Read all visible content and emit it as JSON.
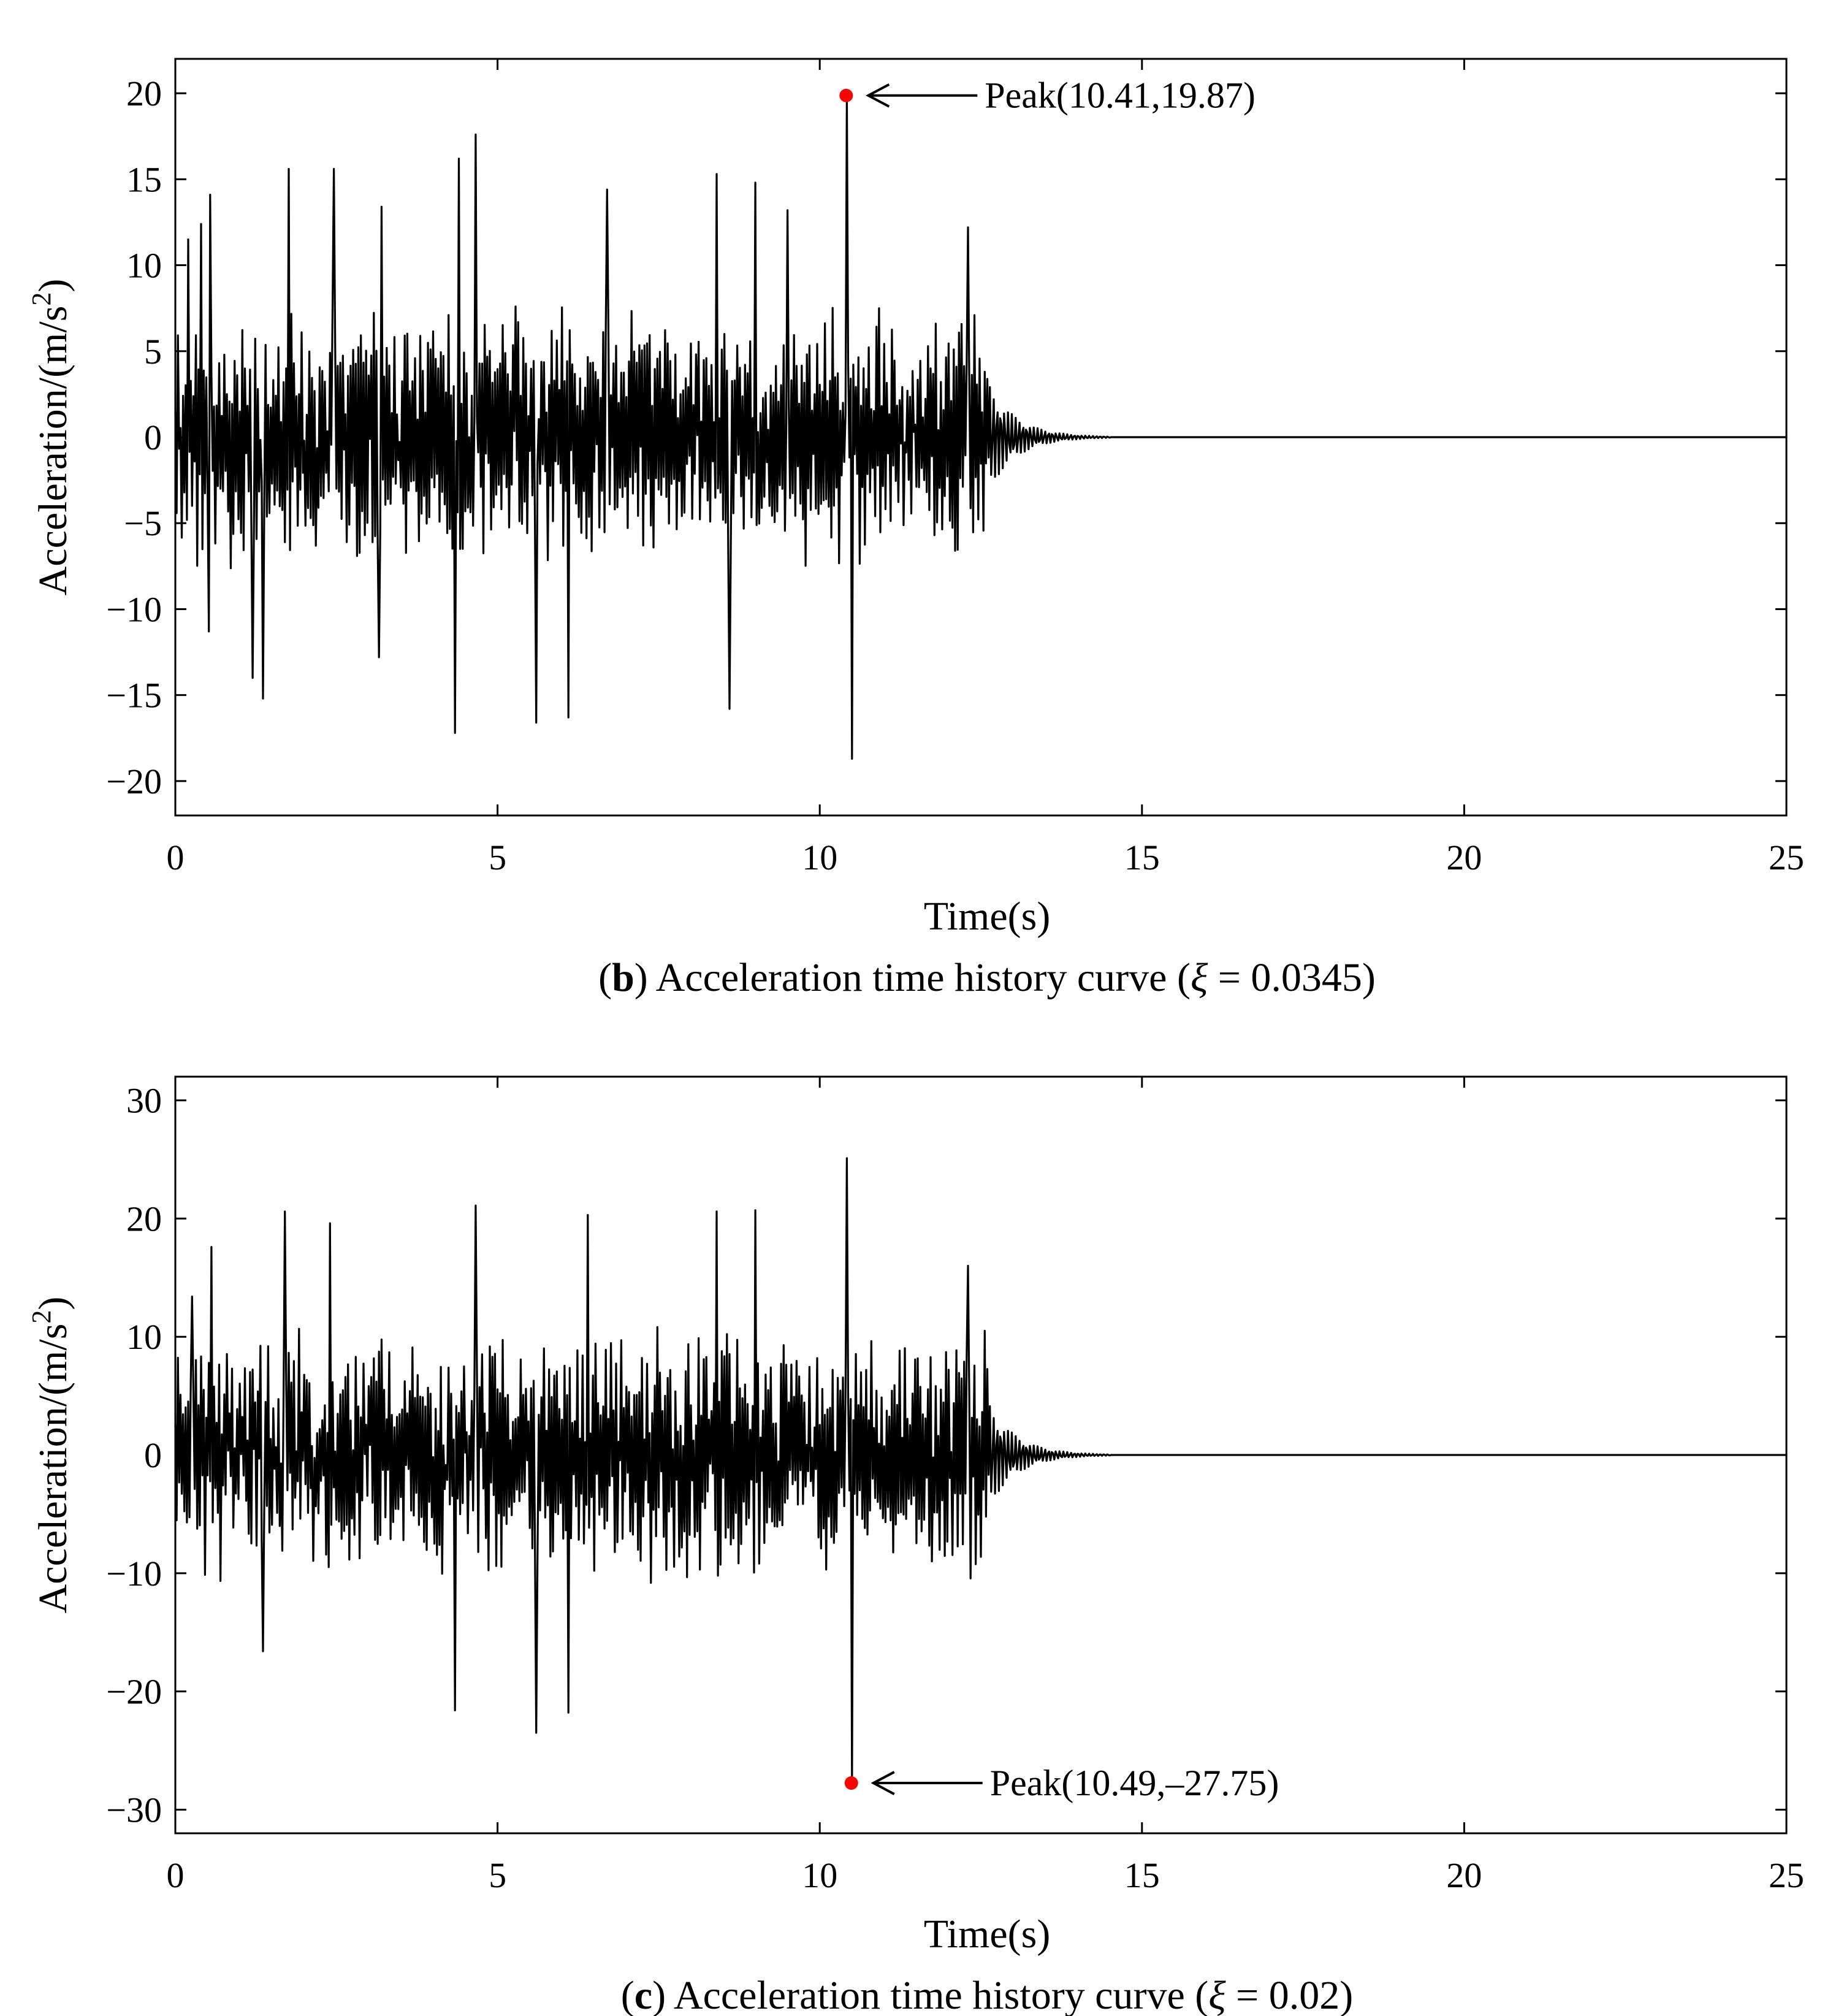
{
  "chart_data": [
    {
      "type": "line",
      "panel_label": "b",
      "caption_text": "Acceleration time history curve (ξ = 0.0345)",
      "caption_pre": ") Acceleration time history curve (",
      "caption_xi": "ξ",
      "caption_post": " = 0.0345)",
      "xlabel": "Time(s)",
      "ylabel": "Acceleration/(m/s",
      "ylabel_sup": "2",
      "ylabel_close": ")",
      "xlim": [
        0,
        25
      ],
      "ylim": [
        -22,
        22
      ],
      "xticks": [
        0,
        5,
        10,
        15,
        20,
        25
      ],
      "xtick_labels": [
        "0",
        "5",
        "10",
        "15",
        "20",
        "25"
      ],
      "yticks": [
        20,
        15,
        10,
        5,
        0,
        -5,
        -10,
        -15,
        -20
      ],
      "ytick_labels": [
        "20",
        "15",
        "10",
        "5",
        "0",
        "−5",
        "−10",
        "−15",
        "−20"
      ],
      "grid": false,
      "series": [
        {
          "line_color": "#000000",
          "generator": {
            "duration": 12.6,
            "decay_end": 14.5,
            "amplitude": 6.0,
            "seed": 11
          },
          "spikes": [
            {
              "x": 0.2,
              "y": 11.5
            },
            {
              "x": 0.4,
              "y": 12.4
            },
            {
              "x": 0.52,
              "y": -11.3
            },
            {
              "x": 0.54,
              "y": 14.1
            },
            {
              "x": 1.2,
              "y": -14.0
            },
            {
              "x": 1.35,
              "y": -15.2
            },
            {
              "x": 1.75,
              "y": 15.6
            },
            {
              "x": 2.45,
              "y": 15.6
            },
            {
              "x": 3.15,
              "y": -12.8
            },
            {
              "x": 3.2,
              "y": 13.4
            },
            {
              "x": 4.35,
              "y": -17.2
            },
            {
              "x": 4.4,
              "y": 16.2
            },
            {
              "x": 4.65,
              "y": 17.6
            },
            {
              "x": 5.6,
              "y": -16.6
            },
            {
              "x": 6.1,
              "y": -16.3
            },
            {
              "x": 6.7,
              "y": 14.4
            },
            {
              "x": 8.4,
              "y": 15.3
            },
            {
              "x": 8.6,
              "y": -15.8
            },
            {
              "x": 9.0,
              "y": 14.8
            },
            {
              "x": 9.5,
              "y": 13.2
            },
            {
              "x": 10.49,
              "y": -18.7
            },
            {
              "x": 12.3,
              "y": 12.2
            }
          ],
          "peak": {
            "x": 10.41,
            "y": 19.87
          }
        }
      ],
      "annotations": [
        {
          "text": "Peak(10.41,19.87)",
          "x": 10.41,
          "y": 19.87,
          "marker_color": "#ff0000"
        }
      ]
    },
    {
      "type": "line",
      "panel_label": "c",
      "caption_text": "Acceleration time history curve (ξ = 0.02)",
      "caption_pre": ") Acceleration time history curve (",
      "caption_xi": "ξ",
      "caption_post": " = 0.02)",
      "xlabel": "Time(s)",
      "ylabel": "Acceleration/(m/s",
      "ylabel_sup": "2",
      "ylabel_close": ")",
      "xlim": [
        0,
        25
      ],
      "ylim": [
        -32,
        32
      ],
      "xticks": [
        0,
        5,
        10,
        15,
        20,
        25
      ],
      "xtick_labels": [
        "0",
        "5",
        "10",
        "15",
        "20",
        "25"
      ],
      "yticks": [
        30,
        20,
        10,
        0,
        -10,
        -20,
        -30
      ],
      "ytick_labels": [
        "30",
        "20",
        "10",
        "0",
        "−10",
        "−20",
        "−30"
      ],
      "grid": false,
      "series": [
        {
          "line_color": "#000000",
          "generator": {
            "duration": 12.6,
            "decay_end": 14.5,
            "amplitude": 8.5,
            "seed": 23
          },
          "spikes": [
            {
              "x": 0.25,
              "y": 13.4
            },
            {
              "x": 0.55,
              "y": 17.6
            },
            {
              "x": 1.35,
              "y": -16.6
            },
            {
              "x": 1.7,
              "y": 20.6
            },
            {
              "x": 2.4,
              "y": 19.6
            },
            {
              "x": 4.35,
              "y": -21.6
            },
            {
              "x": 4.65,
              "y": 21.1
            },
            {
              "x": 5.6,
              "y": -23.5
            },
            {
              "x": 6.1,
              "y": -21.8
            },
            {
              "x": 6.4,
              "y": 20.3
            },
            {
              "x": 8.4,
              "y": 20.6
            },
            {
              "x": 9.0,
              "y": 20.7
            },
            {
              "x": 10.41,
              "y": 25.1
            },
            {
              "x": 12.3,
              "y": 16.0
            }
          ],
          "peak": {
            "x": 10.49,
            "y": -27.75
          }
        }
      ],
      "annotations": [
        {
          "text": "Peak(10.49,–27.75)",
          "x": 10.49,
          "y": -27.75,
          "marker_color": "#ff0000"
        }
      ]
    }
  ]
}
